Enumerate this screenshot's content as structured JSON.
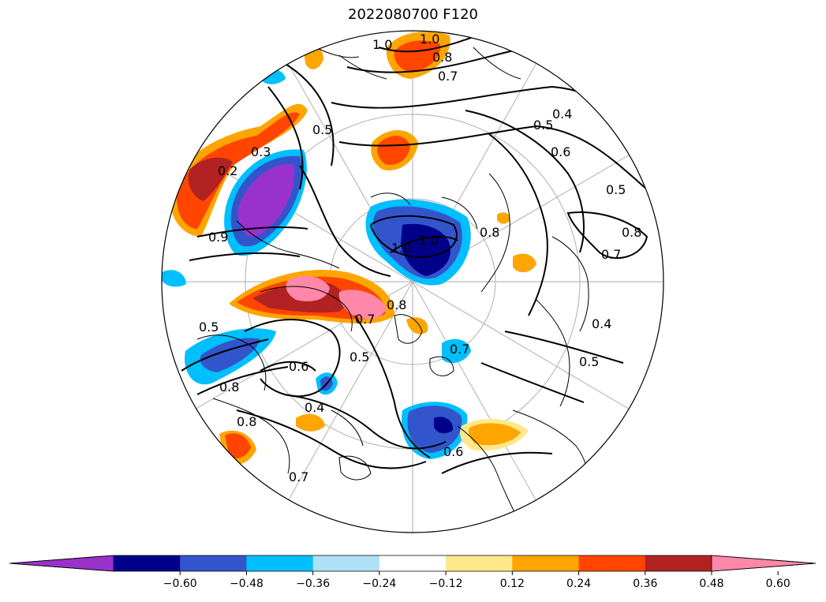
{
  "title": "2022080700 F120",
  "colorbar": {
    "colors": [
      "#9932cc",
      "#00008b",
      "#3355cc",
      "#00bfff",
      "#b0e0f8",
      "#ffffff",
      "#ffe88a",
      "#ffa500",
      "#ff4500",
      "#b22222",
      "#ff88aa"
    ],
    "ticks": [
      "−0.60",
      "−0.48",
      "−0.36",
      "−0.24",
      "−0.12",
      "0.12",
      "0.24",
      "0.36",
      "0.48",
      "0.60"
    ]
  },
  "contour_labels": [
    "1.0",
    "1.0",
    "0.8",
    "0.7",
    "0.5",
    "0.4",
    "0.5",
    "0.6",
    "0.5",
    "0.8",
    "0.7",
    "0.4",
    "0.5",
    "0.5",
    "0.3",
    "0.2",
    "0.6",
    "0.7",
    "0.8",
    "0.6",
    "0.9",
    "1.0",
    "1.0",
    "0.8",
    "0.7",
    "0.5",
    "0.8",
    "0.4",
    "0.8",
    "0.7"
  ]
}
